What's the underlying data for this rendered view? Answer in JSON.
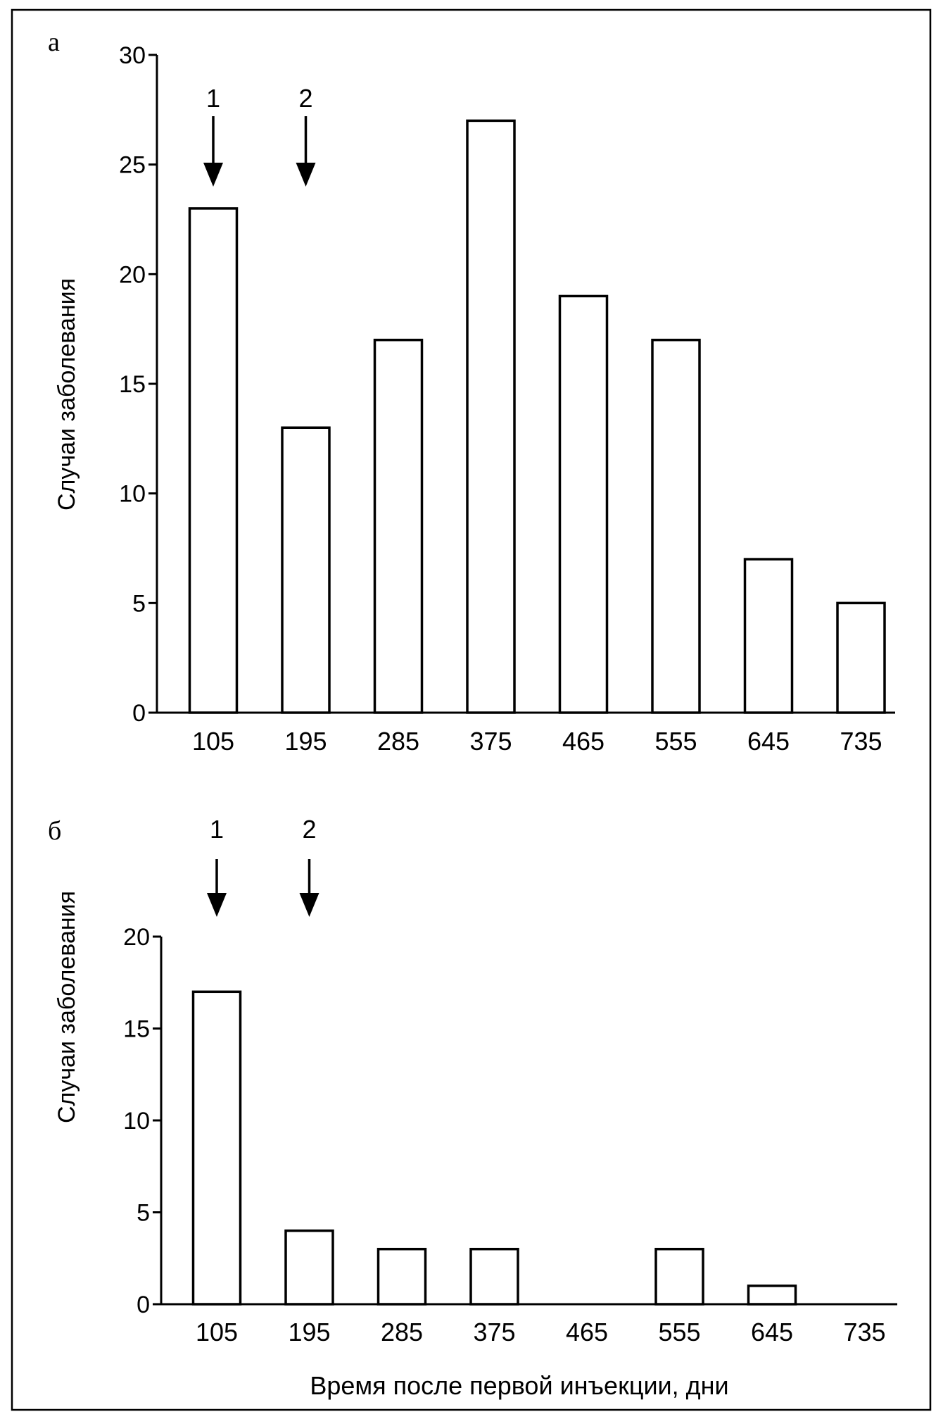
{
  "chart_data": [
    {
      "panel": "а",
      "type": "bar",
      "categories": [
        "105",
        "195",
        "285",
        "375",
        "465",
        "555",
        "645",
        "735"
      ],
      "values": [
        23,
        13,
        17,
        27,
        19,
        17,
        7,
        5
      ],
      "ylabel": "Случаи заболевания",
      "xlabel": "",
      "ylim": [
        0,
        30
      ],
      "yticks": [
        0,
        5,
        10,
        15,
        20,
        25,
        30
      ],
      "arrows": [
        {
          "label": "1",
          "category": "105"
        },
        {
          "label": "2",
          "category": "195"
        }
      ]
    },
    {
      "panel": "б",
      "type": "bar",
      "categories": [
        "105",
        "195",
        "285",
        "375",
        "465",
        "555",
        "645",
        "735"
      ],
      "values": [
        17,
        4,
        3,
        3,
        0,
        3,
        1,
        0
      ],
      "ylabel": "Случаи заболевания",
      "xlabel": "Время после первой инъекции, дни",
      "ylim": [
        0,
        20
      ],
      "yticks": [
        0,
        5,
        10,
        15,
        20
      ],
      "arrows": [
        {
          "label": "1",
          "category": "105"
        },
        {
          "label": "2",
          "category": "195"
        }
      ]
    }
  ]
}
